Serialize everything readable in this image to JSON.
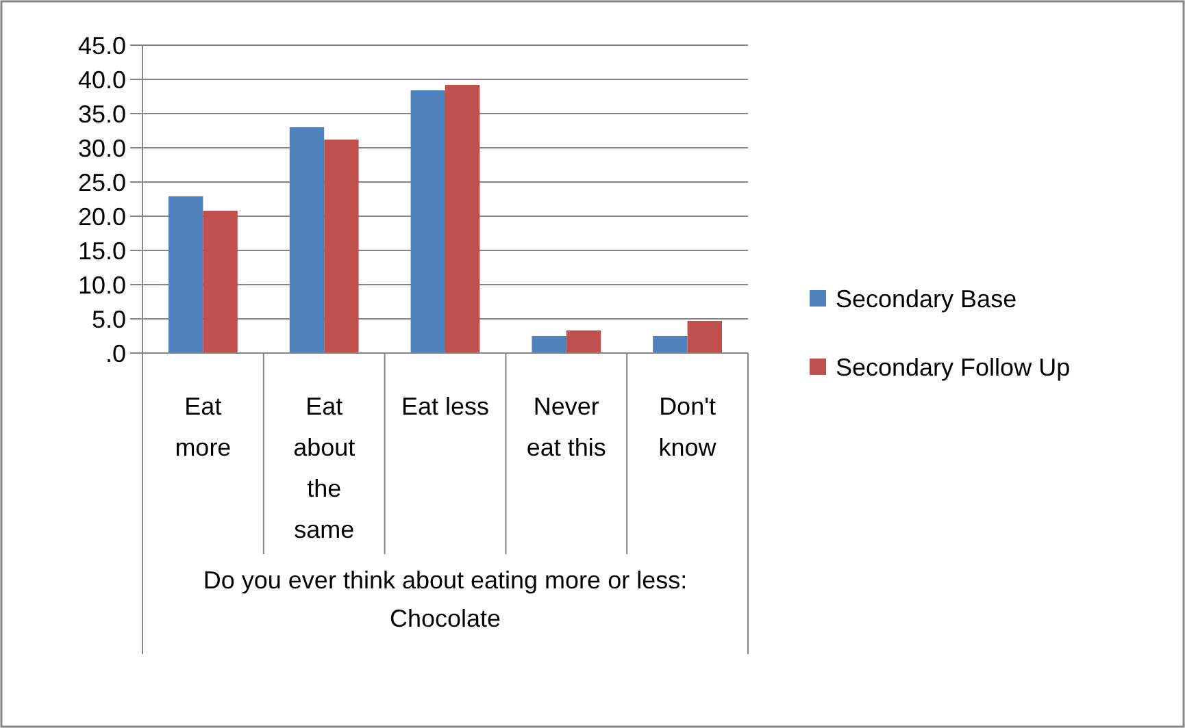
{
  "chart_data": {
    "type": "bar",
    "xlabel": "Do you ever think about eating more or less: Chocolate",
    "categories": [
      "Eat more",
      "Eat about the same",
      "Eat less",
      "Never eat this",
      "Don't know"
    ],
    "series": [
      {
        "name": "Secondary Base",
        "color": "#4f81bd",
        "values": [
          22.9,
          33.0,
          38.4,
          2.5,
          2.5
        ]
      },
      {
        "name": "Secondary Follow Up",
        "color": "#c0504d",
        "values": [
          20.8,
          31.2,
          39.2,
          3.3,
          4.7
        ]
      }
    ],
    "ylim": [
      0,
      45
    ],
    "yticks": [
      {
        "value": 0,
        "label": ".0"
      },
      {
        "value": 5,
        "label": "5.0"
      },
      {
        "value": 10,
        "label": "10.0"
      },
      {
        "value": 15,
        "label": "15.0"
      },
      {
        "value": 20,
        "label": "20.0"
      },
      {
        "value": 25,
        "label": "25.0"
      },
      {
        "value": 30,
        "label": "30.0"
      },
      {
        "value": 35,
        "label": "35.0"
      },
      {
        "value": 40,
        "label": "40.0"
      },
      {
        "value": 45,
        "label": "45.0"
      }
    ],
    "grid": "y",
    "legend": "right"
  }
}
